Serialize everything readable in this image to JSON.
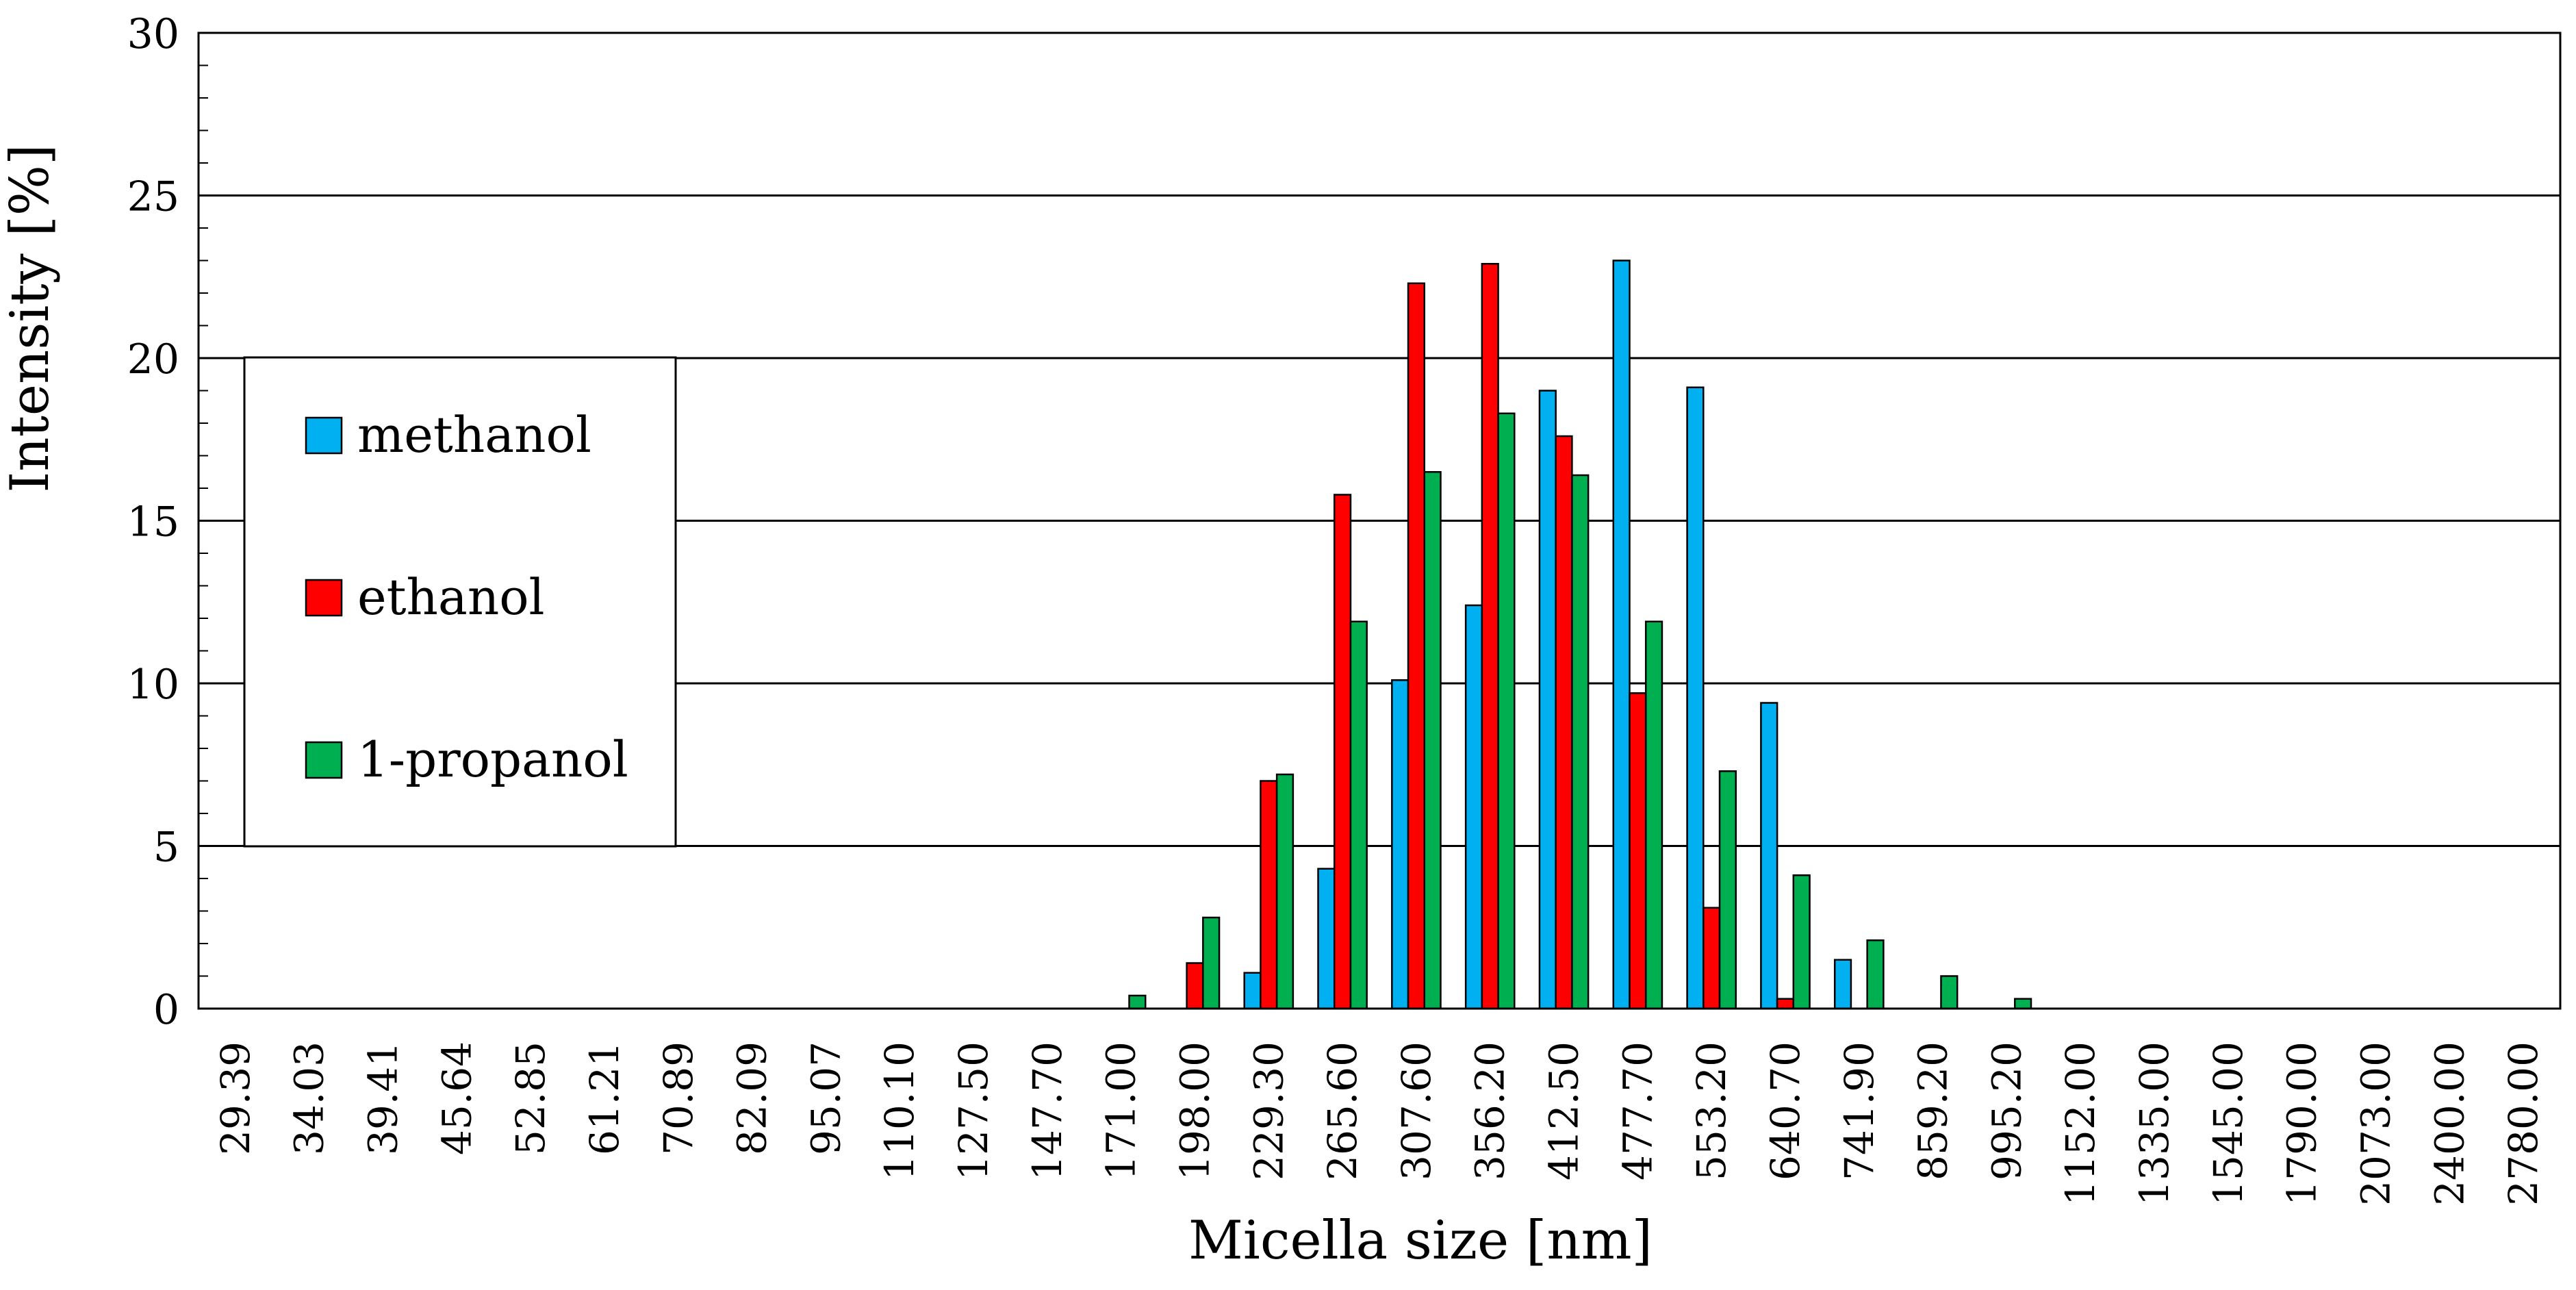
{
  "chart_data": {
    "type": "bar",
    "title": "",
    "xlabel": "Micella size [nm]",
    "ylabel": "Intensity [%]",
    "ylim": [
      0,
      30
    ],
    "yticks": [
      0,
      5,
      10,
      15,
      20,
      25,
      30
    ],
    "grid": "horizontal",
    "legend_position": "left",
    "categories": [
      "29.39",
      "34.03",
      "39.41",
      "45.64",
      "52.85",
      "61.21",
      "70.89",
      "82.09",
      "95.07",
      "110.10",
      "127.50",
      "147.70",
      "171.00",
      "198.00",
      "229.30",
      "265.60",
      "307.60",
      "356.20",
      "412.50",
      "477.70",
      "553.20",
      "640.70",
      "741.90",
      "859.20",
      "995.20",
      "1152.00",
      "1335.00",
      "1545.00",
      "1790.00",
      "2073.00",
      "2400.00",
      "2780.00"
    ],
    "series": [
      {
        "name": "methanol",
        "color": "#00B0F0",
        "values": [
          0,
          0,
          0,
          0,
          0,
          0,
          0,
          0,
          0,
          0,
          0,
          0,
          0,
          0,
          1.1,
          4.3,
          10.1,
          12.4,
          19.0,
          23.0,
          19.1,
          9.4,
          1.5,
          0,
          0,
          0,
          0,
          0,
          0,
          0,
          0,
          0
        ]
      },
      {
        "name": "ethanol",
        "color": "#FF0000",
        "values": [
          0,
          0,
          0,
          0,
          0,
          0,
          0,
          0,
          0,
          0,
          0,
          0,
          0,
          1.4,
          7.0,
          15.8,
          22.3,
          22.9,
          17.6,
          9.7,
          3.1,
          0.3,
          0,
          0,
          0,
          0,
          0,
          0,
          0,
          0,
          0,
          0
        ]
      },
      {
        "name": "1-propanol",
        "color": "#00B050",
        "values": [
          0,
          0,
          0,
          0,
          0,
          0,
          0,
          0,
          0,
          0,
          0,
          0,
          0.4,
          2.8,
          7.2,
          11.9,
          16.5,
          18.3,
          16.4,
          11.9,
          7.3,
          4.1,
          2.1,
          1.0,
          0.3,
          0,
          0,
          0,
          0,
          0,
          0,
          0
        ]
      }
    ]
  }
}
